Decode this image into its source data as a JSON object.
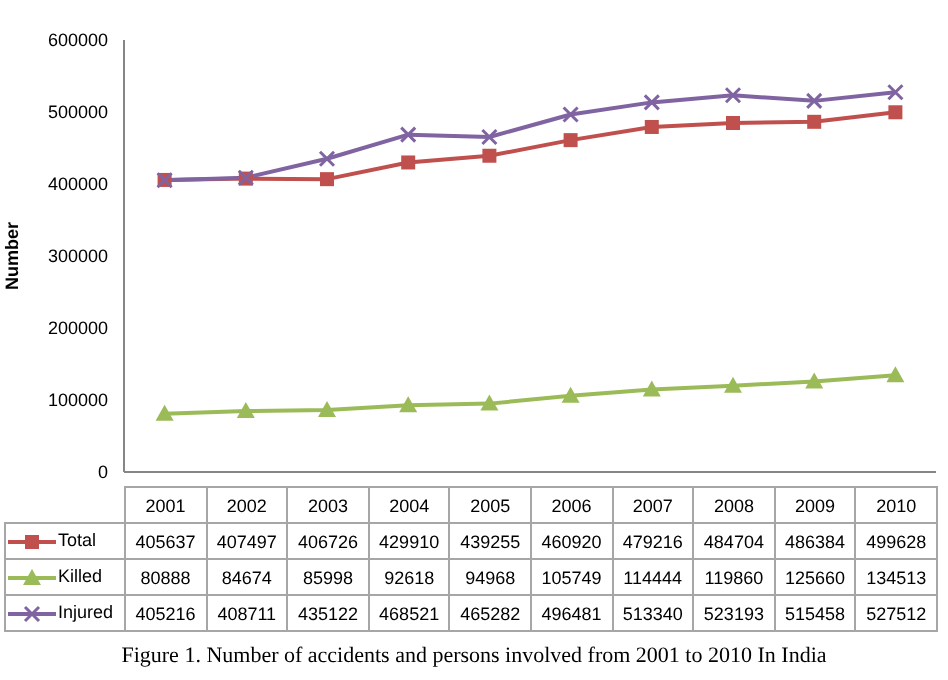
{
  "chart_data": {
    "type": "line",
    "ylabel": "Number",
    "categories": [
      "2001",
      "2002",
      "2003",
      "2004",
      "2005",
      "2006",
      "2007",
      "2008",
      "2009",
      "2010"
    ],
    "series": [
      {
        "name": "Total",
        "color": "#c0504d",
        "marker": "square",
        "values": [
          405637,
          407497,
          406726,
          429910,
          439255,
          460920,
          479216,
          484704,
          486384,
          499628
        ]
      },
      {
        "name": "Killed",
        "color": "#9bbb59",
        "marker": "triangle",
        "values": [
          80888,
          84674,
          85998,
          92618,
          94968,
          105749,
          114444,
          119860,
          125660,
          134513
        ]
      },
      {
        "name": "Injured",
        "color": "#8064a2",
        "marker": "cross",
        "values": [
          405216,
          408711,
          435122,
          468521,
          465282,
          496481,
          513340,
          523193,
          515458,
          527512
        ]
      }
    ],
    "ylim": [
      0,
      600000
    ],
    "yticks": [
      0,
      100000,
      200000,
      300000,
      400000,
      500000,
      600000
    ],
    "grid": false,
    "data_labels": true,
    "legend": "bottom",
    "annotations": [
      "Figure 1. Number of accidents and persons involved from 2001 to 2010 In India"
    ]
  }
}
